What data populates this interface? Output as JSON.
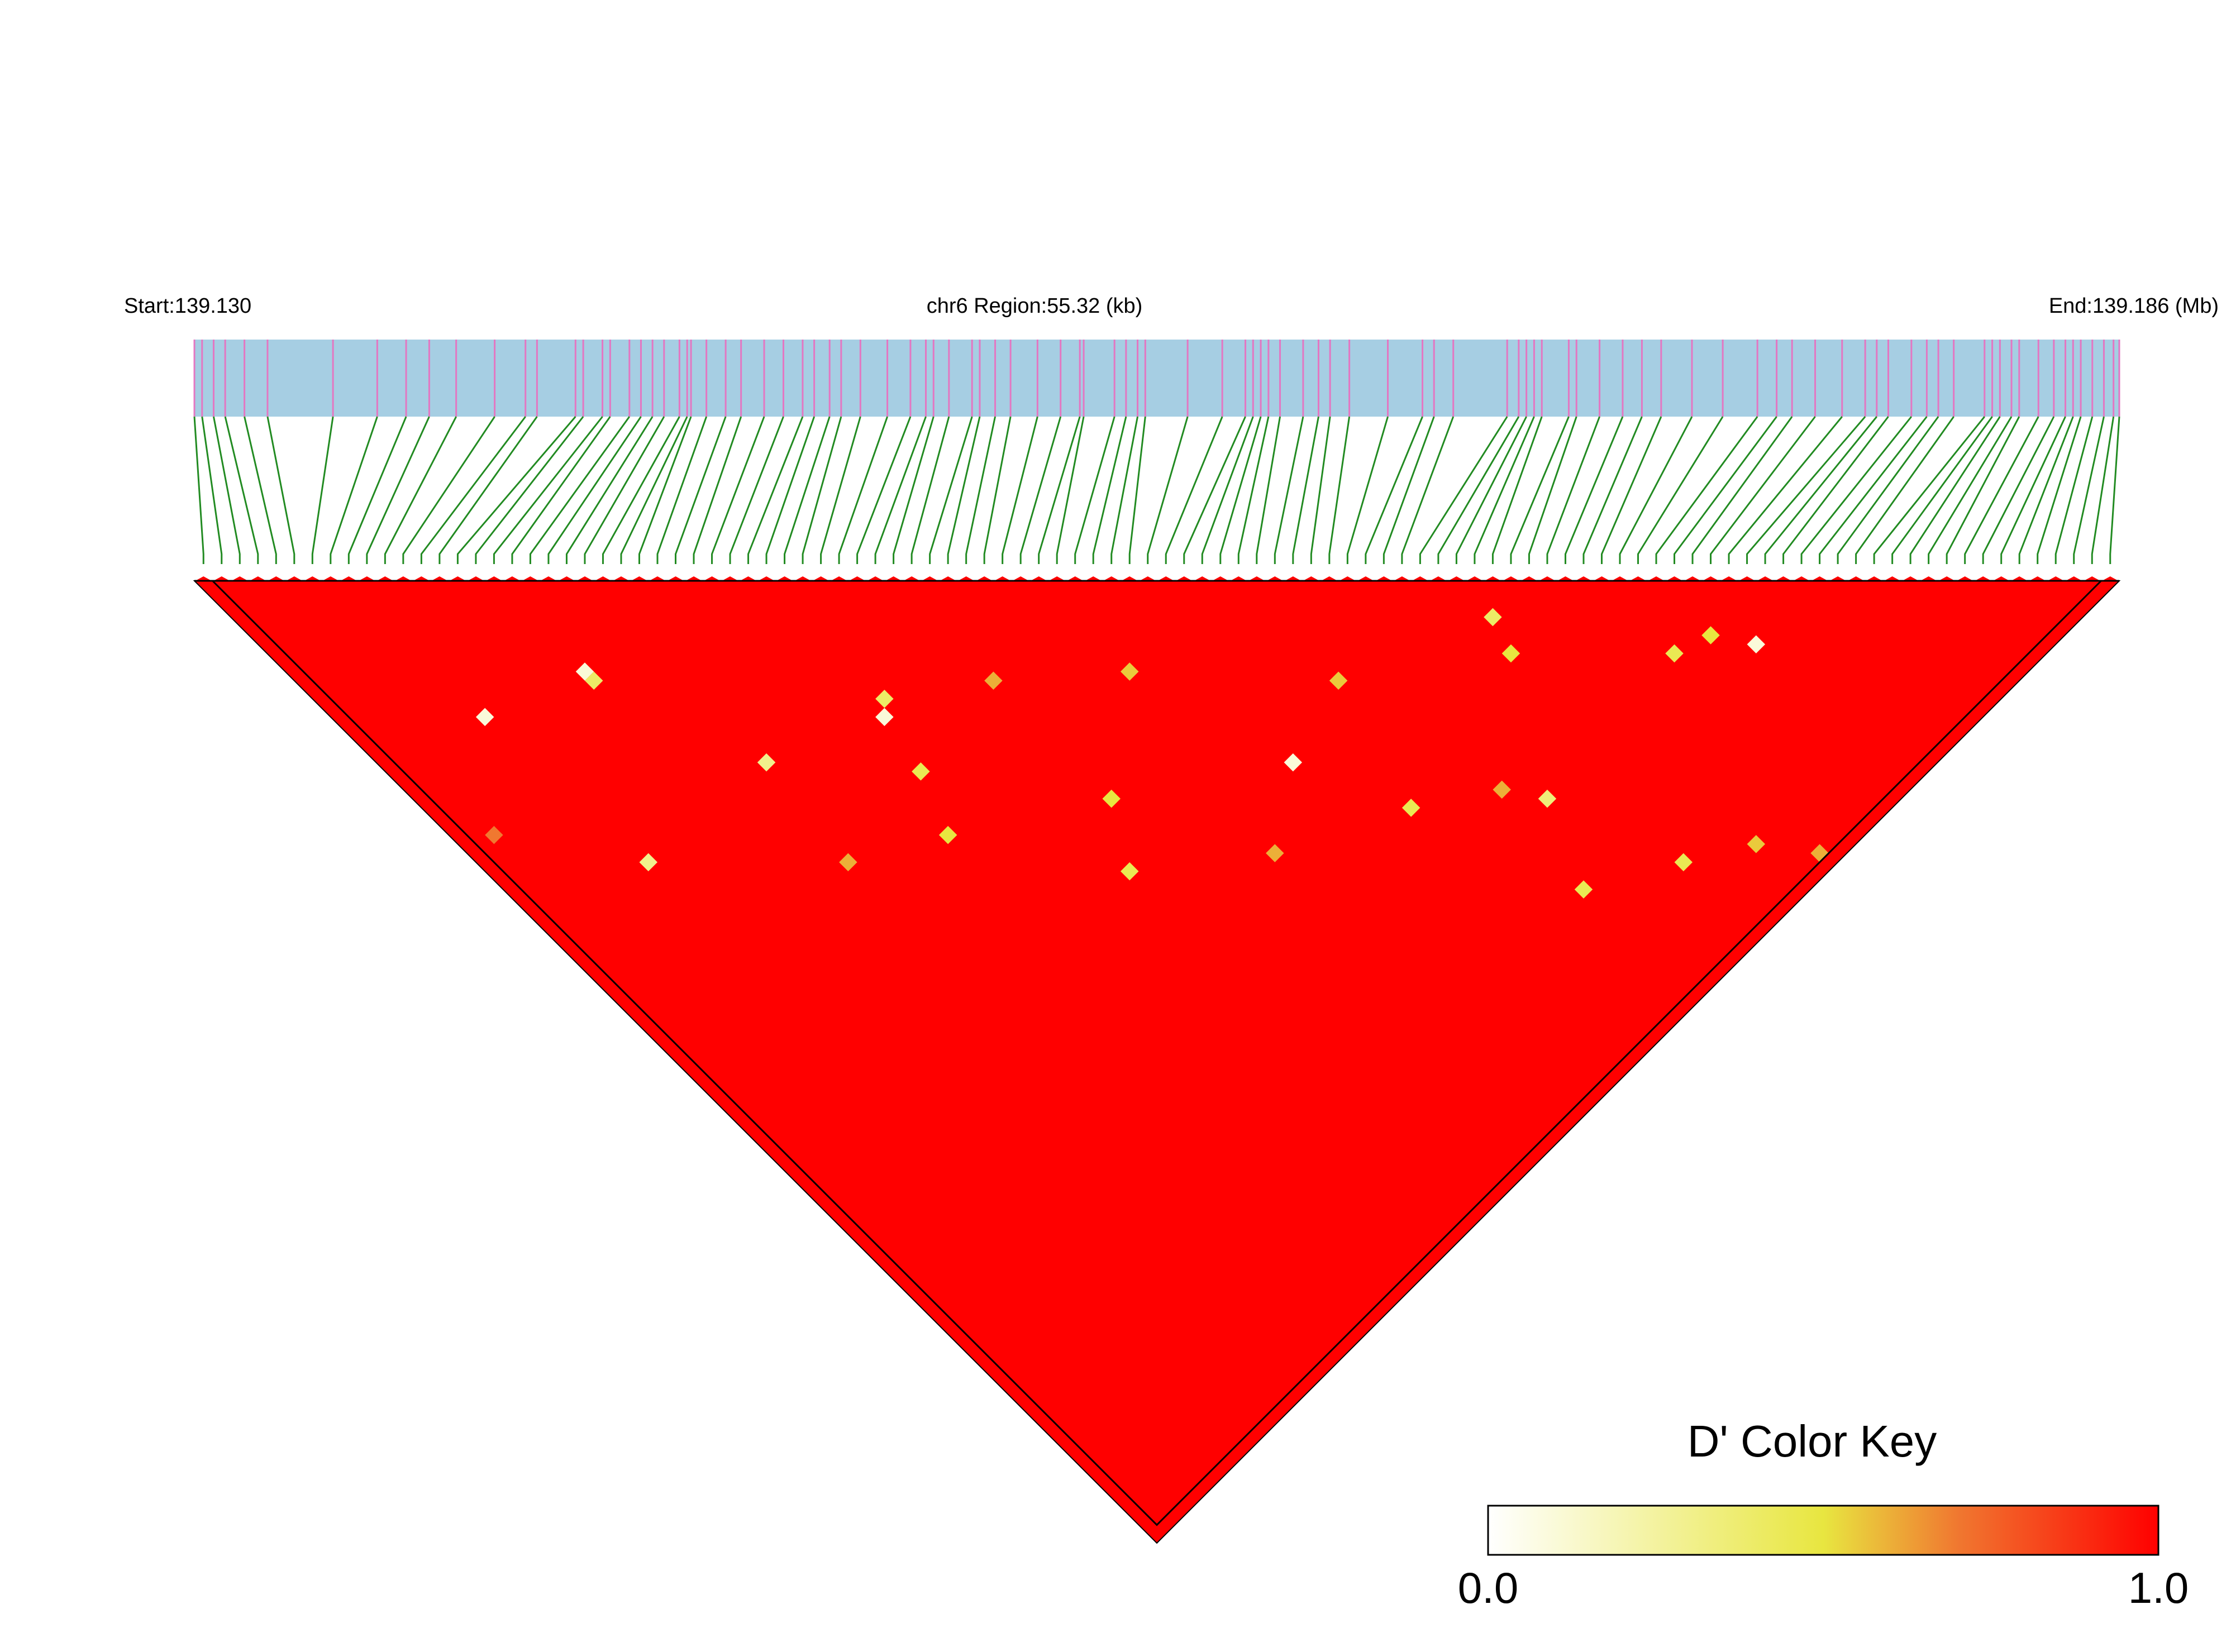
{
  "chart_data": {
    "type": "heatmap",
    "subtype": "linkage-disequilibrium-triangle",
    "header": {
      "start_label": "Start:139.130",
      "region_label": "chr6 Region:55.32 (kb)",
      "end_label": "End:139.186 (Mb)"
    },
    "chromosome": "chr6",
    "region_start_mb": 139.13,
    "region_end_mb": 139.186,
    "region_length_kb": 55.32,
    "marker_positions_fraction": [
      0.0,
      0.004,
      0.01,
      0.016,
      0.026,
      0.038,
      0.072,
      0.095,
      0.11,
      0.122,
      0.136,
      0.156,
      0.172,
      0.178,
      0.198,
      0.202,
      0.212,
      0.216,
      0.226,
      0.232,
      0.238,
      0.244,
      0.252,
      0.256,
      0.258,
      0.266,
      0.276,
      0.284,
      0.296,
      0.306,
      0.316,
      0.322,
      0.33,
      0.336,
      0.346,
      0.36,
      0.372,
      0.38,
      0.384,
      0.392,
      0.404,
      0.408,
      0.416,
      0.424,
      0.438,
      0.45,
      0.46,
      0.462,
      0.478,
      0.484,
      0.49,
      0.494,
      0.516,
      0.534,
      0.546,
      0.554,
      0.55,
      0.558,
      0.564,
      0.576,
      0.584,
      0.59,
      0.6,
      0.62,
      0.638,
      0.644,
      0.654,
      0.682,
      0.688,
      0.692,
      0.696,
      0.7,
      0.714,
      0.718,
      0.73,
      0.742,
      0.752,
      0.762,
      0.778,
      0.794,
      0.812,
      0.822,
      0.83,
      0.842,
      0.856,
      0.868,
      0.874,
      0.88,
      0.892,
      0.9,
      0.906,
      0.914,
      0.93,
      0.934,
      0.938,
      0.944,
      0.948,
      0.958,
      0.966,
      0.972,
      0.976,
      0.98,
      0.986,
      0.992,
      0.997,
      1.0
    ],
    "color_key": {
      "title": "D' Color Key",
      "min_label": "0.0",
      "max_label": "1.0",
      "min": 0.0,
      "max": 1.0,
      "stops": [
        {
          "value": 0.0,
          "color": "#ffffff"
        },
        {
          "value": 0.5,
          "color": "#e8e640"
        },
        {
          "value": 0.7,
          "color": "#f07830"
        },
        {
          "value": 1.0,
          "color": "#ff0000"
        }
      ]
    },
    "dominant_value": 1.0,
    "notable_cells": [
      {
        "i": 16,
        "j": 26,
        "d": 0.1
      },
      {
        "i": 16,
        "j": 27,
        "d": 0.4
      },
      {
        "i": 8,
        "j": 23,
        "d": 0.1
      },
      {
        "i": 30,
        "j": 45,
        "d": 0.1
      },
      {
        "i": 21,
        "j": 41,
        "d": 0.3
      },
      {
        "i": 31,
        "j": 44,
        "d": 0.4
      },
      {
        "i": 27,
        "j": 55,
        "d": 0.5
      },
      {
        "i": 46,
        "j": 56,
        "d": 0.55
      },
      {
        "i": 29,
        "j": 50,
        "d": 0.45
      },
      {
        "i": 50,
        "j": 70,
        "d": 0.1
      },
      {
        "i": 68,
        "j": 76,
        "d": 0.5
      },
      {
        "i": 69,
        "j": 73,
        "d": 0.4
      },
      {
        "i": 77,
        "j": 85,
        "d": 0.45
      },
      {
        "i": 80,
        "j": 86,
        "d": 0.5
      },
      {
        "i": 82,
        "j": 89,
        "d": 0.1
      },
      {
        "i": 38,
        "j": 62,
        "d": 0.5
      },
      {
        "i": 35,
        "j": 67,
        "d": 0.45
      },
      {
        "i": 44,
        "j": 74,
        "d": 0.6
      },
      {
        "i": 54,
        "j": 79,
        "d": 0.45
      },
      {
        "i": 60,
        "j": 83,
        "d": 0.6
      },
      {
        "i": 62,
        "j": 86,
        "d": 0.35
      },
      {
        "i": 9,
        "j": 40,
        "d": 0.3
      },
      {
        "i": 20,
        "j": 51,
        "d": 0.6
      },
      {
        "i": 59,
        "j": 93,
        "d": 0.45
      },
      {
        "i": 66,
        "j": 97,
        "d": 0.45
      },
      {
        "i": 74,
        "j": 104,
        "d": 0.6
      },
      {
        "i": 71,
        "j": 100,
        "d": 0.55
      },
      {
        "i": 2,
        "j": 30,
        "d": 0.7
      },
      {
        "i": 57,
        "j": 68,
        "d": 0.55
      },
      {
        "i": 38,
        "j": 49,
        "d": 0.6
      }
    ],
    "ld_block": {
      "first_marker": 1,
      "last_marker": 105,
      "outline_color": "#000000"
    },
    "colors": {
      "gene_bar": "#a6cee3",
      "marker_tick": "#e377c2",
      "connector": "#228b22",
      "ld_high": "#ff0000",
      "outline": "#000000"
    }
  }
}
